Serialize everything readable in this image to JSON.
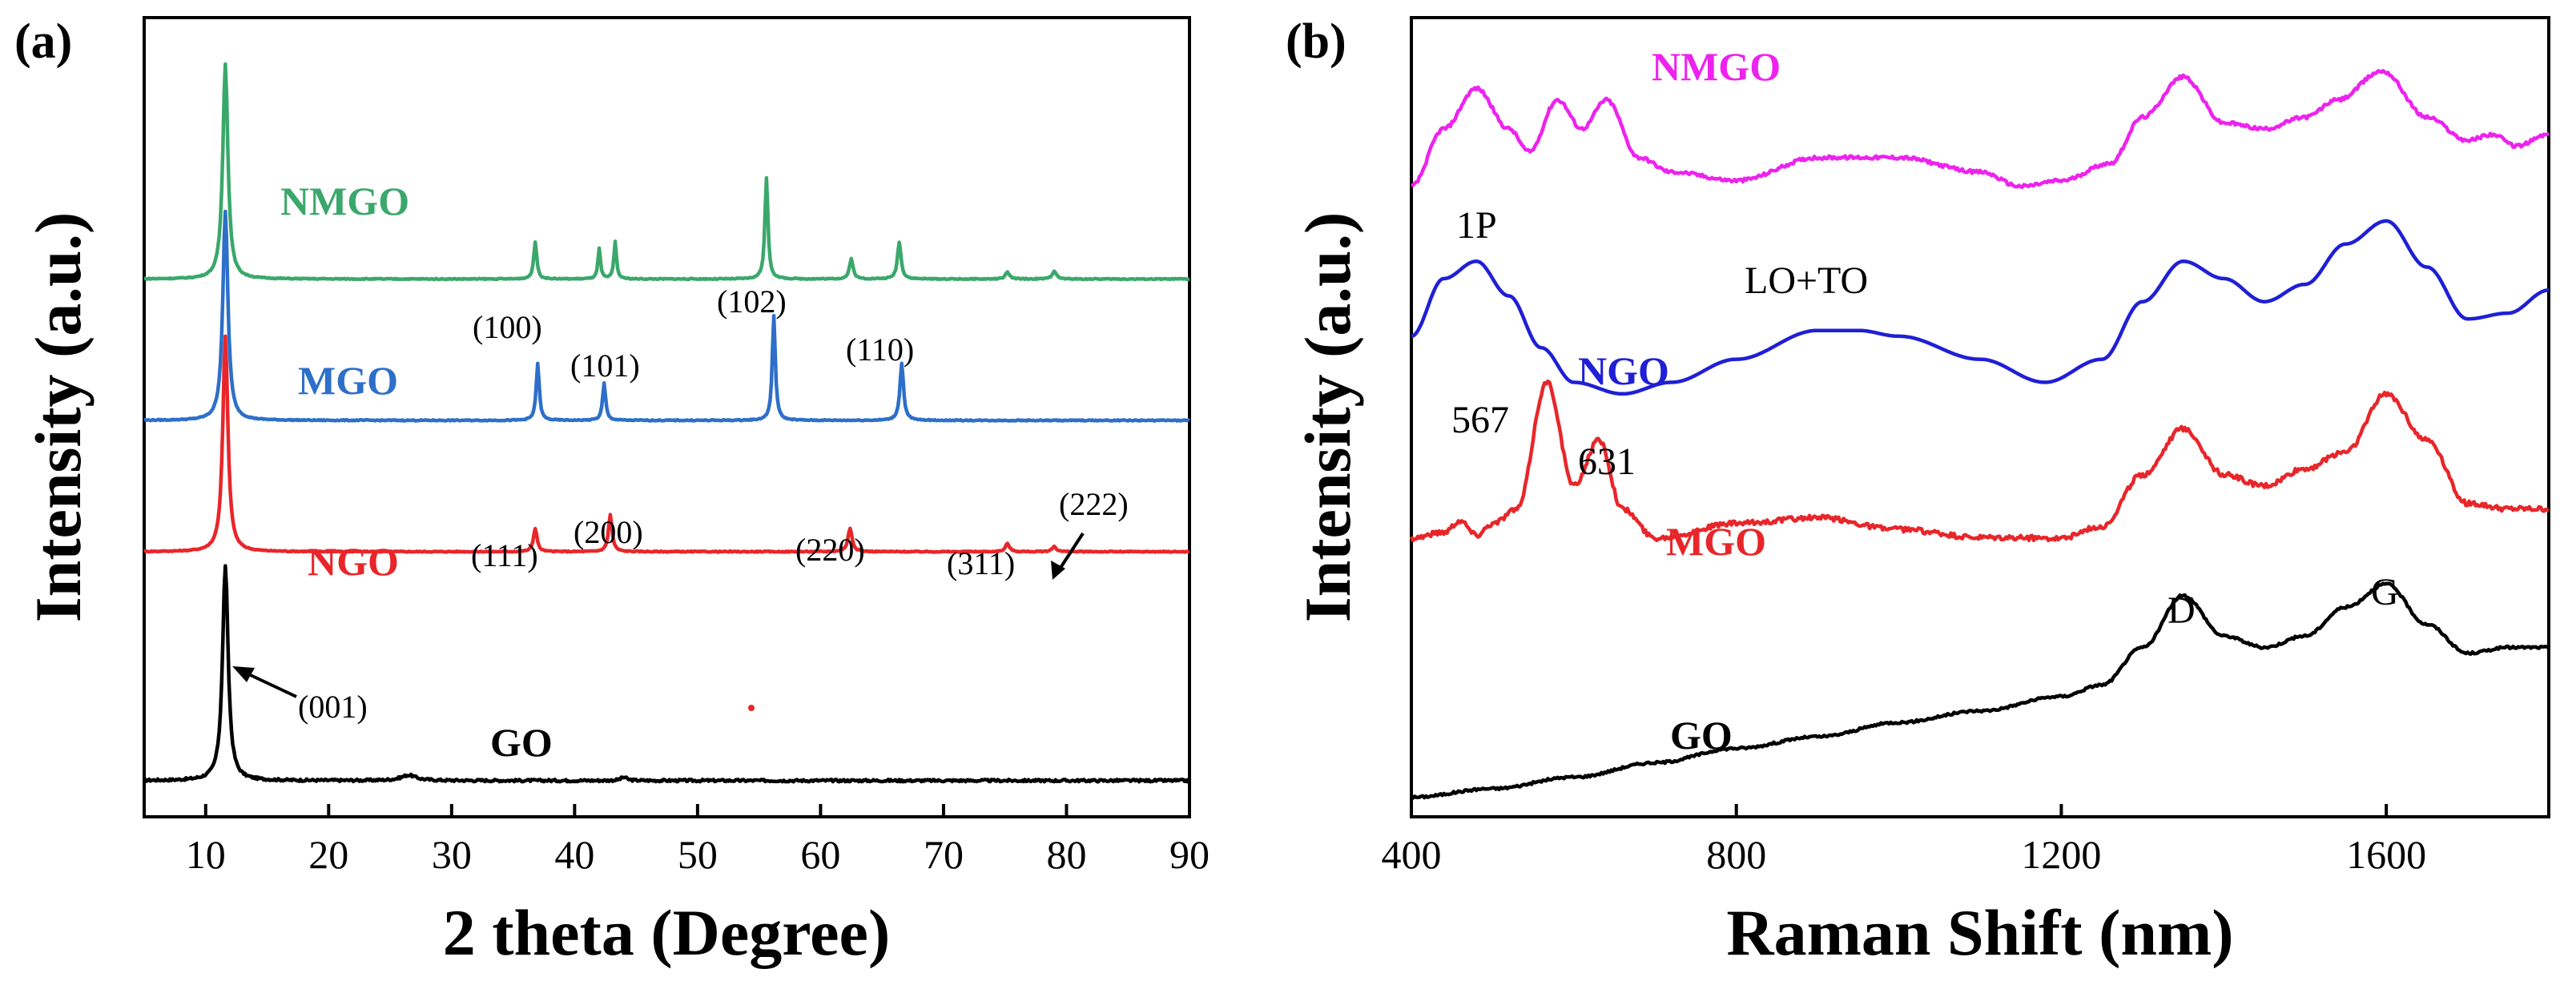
{
  "chart_data": [
    {
      "panel": "(a)",
      "type": "line",
      "xlabel": "2 theta (Degree)",
      "ylabel": "Intensity (a.u.)",
      "xlim": [
        5,
        90
      ],
      "xticks": [
        10,
        20,
        30,
        40,
        50,
        60,
        70,
        80,
        90
      ],
      "yticks": false,
      "grid": false,
      "series": [
        {
          "name": "GO",
          "color": "#000000",
          "baseline": 0,
          "noise": 0.035,
          "peaks": [
            [
              11.6,
              3.2,
              0.55
            ],
            [
              26.5,
              0.08,
              1.5
            ],
            [
              44.0,
              0.05,
              0.6
            ]
          ]
        },
        {
          "name": "NGO",
          "color": "#e8262a",
          "baseline": 3.4,
          "noise": 0.015,
          "peaks": [
            [
              11.6,
              3.2,
              0.5
            ],
            [
              36.8,
              0.35,
              0.35
            ],
            [
              42.9,
              0.55,
              0.35
            ],
            [
              62.4,
              0.35,
              0.4
            ],
            [
              75.2,
              0.12,
              0.4
            ],
            [
              79.0,
              0.08,
              0.4
            ]
          ]
        },
        {
          "name": "MGO",
          "color": "#2d6fc9",
          "baseline": 5.35,
          "noise": 0.015,
          "peaks": [
            [
              11.6,
              3.1,
              0.5
            ],
            [
              37.0,
              0.85,
              0.3
            ],
            [
              42.4,
              0.55,
              0.3
            ],
            [
              56.2,
              1.55,
              0.3
            ],
            [
              66.6,
              0.85,
              0.35
            ]
          ]
        },
        {
          "name": "NMGO",
          "color": "#3aa86b",
          "baseline": 7.45,
          "noise": 0.015,
          "peaks": [
            [
              11.6,
              3.2,
              0.5
            ],
            [
              36.8,
              0.55,
              0.3
            ],
            [
              42.0,
              0.45,
              0.25
            ],
            [
              43.3,
              0.55,
              0.25
            ],
            [
              55.6,
              1.5,
              0.3
            ],
            [
              62.5,
              0.3,
              0.35
            ],
            [
              66.4,
              0.55,
              0.35
            ],
            [
              75.2,
              0.1,
              0.4
            ],
            [
              79.0,
              0.12,
              0.4
            ]
          ]
        }
      ],
      "peak_labels": [
        "(001)",
        "(111)",
        "(200)",
        "(220)",
        "(311)",
        "(222)",
        "(100)",
        "(101)",
        "(102)",
        "(110)"
      ]
    },
    {
      "panel": "(b)",
      "type": "line",
      "xlabel": "Raman Shift (nm)",
      "ylabel": "Intensity (a.u.)",
      "xlim": [
        400,
        1800
      ],
      "xticks": [
        400,
        800,
        1200,
        1600
      ],
      "yticks": false,
      "grid": false,
      "series": [
        {
          "name": "GO",
          "color": "#000000",
          "x": [
            400,
            500,
            600,
            700,
            800,
            900,
            1000,
            1100,
            1200,
            1250,
            1300,
            1350,
            1400,
            1450,
            1500,
            1550,
            1600,
            1650,
            1700,
            1750,
            1800
          ],
          "y": [
            0.0,
            0.15,
            0.35,
            0.6,
            0.85,
            1.05,
            1.3,
            1.5,
            1.75,
            1.95,
            2.6,
            3.5,
            2.8,
            2.6,
            2.8,
            3.3,
            3.7,
            3.0,
            2.5,
            2.6,
            2.6
          ]
        },
        {
          "name": "MGO",
          "color": "#e8262a",
          "x": [
            400,
            440,
            460,
            480,
            500,
            530,
            567,
            600,
            631,
            660,
            700,
            800,
            900,
            1000,
            1100,
            1200,
            1250,
            1300,
            1350,
            1400,
            1450,
            1500,
            1550,
            1600,
            1650,
            1700,
            1750,
            1800
          ],
          "y": [
            4.5,
            4.6,
            4.8,
            4.55,
            4.75,
            5.0,
            7.2,
            5.4,
            6.2,
            5.0,
            4.5,
            4.75,
            4.85,
            4.65,
            4.5,
            4.5,
            4.7,
            5.6,
            6.4,
            5.6,
            5.4,
            5.7,
            6.0,
            7.0,
            6.2,
            5.1,
            5.0,
            5.0
          ]
        },
        {
          "name": "NGO",
          "color": "#1f1fd6",
          "x": [
            400,
            440,
            480,
            520,
            560,
            600,
            660,
            720,
            800,
            900,
            950,
            1000,
            1100,
            1180,
            1250,
            1300,
            1350,
            1400,
            1450,
            1500,
            1550,
            1600,
            1650,
            1700,
            1750,
            1800
          ],
          "y": [
            8.0,
            9.0,
            9.3,
            8.7,
            7.8,
            7.2,
            7.0,
            7.2,
            7.6,
            8.1,
            8.1,
            8.0,
            7.6,
            7.2,
            7.6,
            8.6,
            9.3,
            9.0,
            8.6,
            8.9,
            9.6,
            10.0,
            9.2,
            8.3,
            8.4,
            8.8
          ]
        },
        {
          "name": "NMGO",
          "color": "#ee22ee",
          "x": [
            400,
            440,
            480,
            520,
            545,
            580,
            610,
            640,
            680,
            720,
            800,
            900,
            1000,
            1100,
            1150,
            1200,
            1260,
            1300,
            1350,
            1400,
            1450,
            1500,
            1540,
            1595,
            1650,
            1700,
            1730,
            1760,
            1800
          ],
          "y": [
            10.6,
            11.6,
            12.3,
            11.6,
            11.2,
            12.1,
            11.6,
            12.1,
            11.1,
            10.85,
            10.7,
            11.1,
            11.1,
            10.85,
            10.6,
            10.7,
            11.0,
            11.8,
            12.5,
            11.7,
            11.6,
            11.8,
            12.1,
            12.6,
            11.8,
            11.4,
            11.5,
            11.3,
            11.5
          ]
        }
      ],
      "annotations": [
        "1P",
        "LO+TO",
        "567",
        "631",
        "D",
        "G"
      ]
    }
  ],
  "panels": {
    "a": {
      "label": "(a)",
      "xlabel": "2 theta (Degree)",
      "ylabel": "Intensity (a.u.)",
      "ticks": [
        "10",
        "20",
        "30",
        "40",
        "50",
        "60",
        "70",
        "80",
        "90"
      ],
      "series_labels": {
        "GO": "GO",
        "NGO": "NGO",
        "MGO": "MGO",
        "NMGO": "NMGO"
      },
      "peaks": {
        "p001": "(001)",
        "p111": "(111)",
        "p200": "(200)",
        "p220": "(220)",
        "p311": "(311)",
        "p222": "(222)",
        "p100": "(100)",
        "p101": "(101)",
        "p102": "(102)",
        "p110": "(110)"
      }
    },
    "b": {
      "label": "(b)",
      "xlabel": "Raman Shift (nm)",
      "ylabel": "Intensity (a.u.)",
      "ticks": [
        "400",
        "800",
        "1200",
        "1600"
      ],
      "series_labels": {
        "GO": "GO",
        "NGO": "NGO",
        "MGO": "MGO",
        "NMGO": "NMGO"
      },
      "annotations": {
        "p1": "1P",
        "lo": "LO+TO",
        "a567": "567",
        "a631": "631",
        "D": "D",
        "G": "G"
      }
    }
  },
  "colors": {
    "GO": "#000000",
    "NGO_a": "#e8262a",
    "MGO_a": "#2d6fc9",
    "NMGO_a": "#3aa86b",
    "MGO_b": "#e8262a",
    "NGO_b": "#1f1fd6",
    "NMGO_b": "#ee22ee"
  }
}
